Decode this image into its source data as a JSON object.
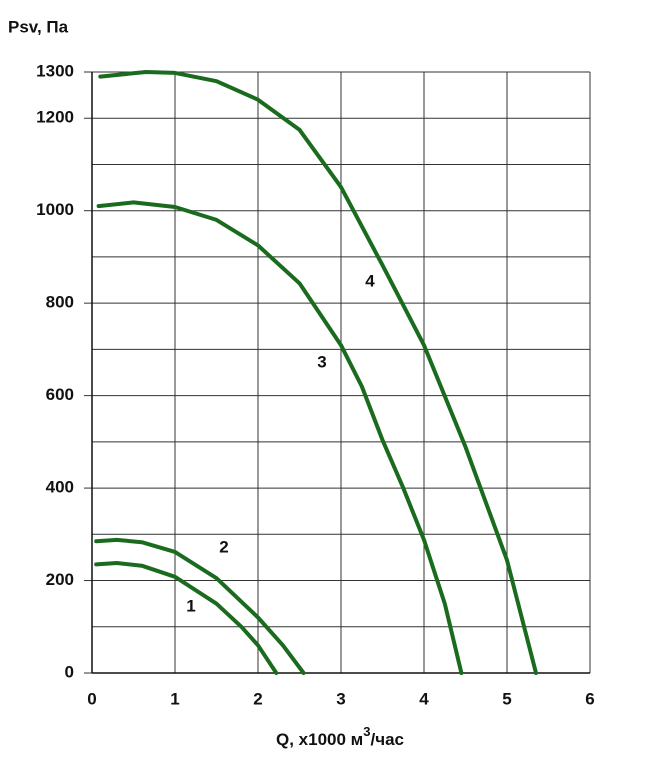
{
  "chart_data": {
    "type": "line",
    "title": "Psv, Па",
    "xlabel_parts": [
      "Q, x1000 м",
      "3",
      "/час"
    ],
    "xlim": [
      0,
      6
    ],
    "xticks": [
      0,
      1,
      2,
      3,
      4,
      5,
      6
    ],
    "ylim": [
      0,
      1300
    ],
    "yticks": [
      0,
      200,
      400,
      600,
      800,
      1000,
      1200,
      1300
    ],
    "ygrid": [
      0,
      100,
      200,
      300,
      400,
      500,
      600,
      700,
      800,
      900,
      1000,
      1100,
      1200,
      1300
    ],
    "grid": true,
    "series": [
      {
        "name": "1",
        "color": "#1b6b1f",
        "x": [
          0.05,
          0.3,
          0.6,
          1,
          1.5,
          1.8,
          2,
          2.22
        ],
        "values": [
          235,
          238,
          232,
          208,
          150,
          100,
          60,
          0
        ]
      },
      {
        "name": "2",
        "color": "#1b6b1f",
        "x": [
          0.05,
          0.3,
          0.6,
          1,
          1.5,
          2,
          2.3,
          2.55
        ],
        "values": [
          285,
          288,
          283,
          262,
          205,
          120,
          60,
          0
        ]
      },
      {
        "name": "3",
        "color": "#1b6b1f",
        "x": [
          0.08,
          0.5,
          1,
          1.5,
          2,
          2.5,
          3,
          3.25,
          3.5,
          3.75,
          4,
          4.25,
          4.45
        ],
        "values": [
          1010,
          1018,
          1008,
          980,
          925,
          843,
          709,
          620,
          504,
          400,
          288,
          150,
          0
        ]
      },
      {
        "name": "4",
        "color": "#1b6b1f",
        "x": [
          0.1,
          0.65,
          1,
          1.5,
          2,
          2.5,
          3,
          3.5,
          4,
          4.5,
          5,
          5.35
        ],
        "values": [
          1290,
          1300,
          1298,
          1280,
          1240,
          1175,
          1051,
          882,
          709,
          489,
          244,
          0
        ]
      }
    ]
  }
}
